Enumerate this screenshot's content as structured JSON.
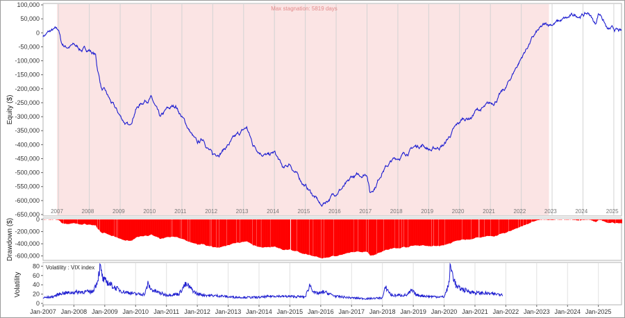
{
  "chart_data": [
    {
      "type": "line",
      "panel": "equity",
      "ylabel": "Equity ($)",
      "ylim": [
        -650000,
        100000
      ],
      "yticks": [
        100000,
        50000,
        0,
        -50000,
        -100000,
        -150000,
        -200000,
        -250000,
        -300000,
        -350000,
        -400000,
        -450000,
        -500000,
        -550000,
        -600000,
        -650000
      ],
      "ytick_labels": [
        "100,000",
        "50,000",
        "0",
        "-50,000",
        "-100,000",
        "-150,000",
        "-200,000",
        "-250,000",
        "-300,000",
        "-350,000",
        "-400,000",
        "-450,000",
        "-500,000",
        "-550,000",
        "-600,000",
        "-650,000"
      ],
      "xlim": [
        2007.0,
        2025.75
      ],
      "year_labels": [
        "2007",
        "2008",
        "2009",
        "2010",
        "2011",
        "2012",
        "2013",
        "2014",
        "2015",
        "2016",
        "2017",
        "2018",
        "2019",
        "2020",
        "2021",
        "2022",
        "2023",
        "2024",
        "2025"
      ],
      "annotation": "Max stagnation: 5819 days",
      "stagnation_period": [
        2007.45,
        2023.4
      ],
      "color": "#1f1fd0",
      "series": [
        {
          "x": [
            2007.0,
            2007.25,
            2007.5,
            2007.6,
            2007.75,
            2008.0,
            2008.25,
            2008.5,
            2008.7,
            2008.75,
            2008.9,
            2009.0,
            2009.2,
            2009.5,
            2009.8,
            2010.0,
            2010.3,
            2010.5,
            2010.8,
            2011.0,
            2011.3,
            2011.5,
            2011.7,
            2012.0,
            2012.2,
            2012.5,
            2012.8,
            2013.0,
            2013.3,
            2013.6,
            2013.8,
            2014.0,
            2014.3,
            2014.5,
            2014.8,
            2015.0,
            2015.3,
            2015.6,
            2015.9,
            2016.0,
            2016.3,
            2016.6,
            2016.9,
            2017.0,
            2017.3,
            2017.5,
            2017.6,
            2017.8,
            2018.0,
            2018.3,
            2018.6,
            2018.9,
            2019.0,
            2019.3,
            2019.6,
            2020.0,
            2020.3,
            2020.6,
            2020.9,
            2021.0,
            2021.3,
            2021.6,
            2021.9,
            2022.0,
            2022.3,
            2022.6,
            2022.8,
            2023.0,
            2023.2,
            2023.4,
            2023.7,
            2024.0,
            2024.2,
            2024.5,
            2024.7,
            2024.9,
            2025.0,
            2025.1,
            2025.3,
            2025.5,
            2025.75
          ],
          "y": [
            -10000,
            5000,
            10000,
            -40000,
            -50000,
            -45000,
            -60000,
            -60000,
            -80000,
            -120000,
            -200000,
            -210000,
            -250000,
            -300000,
            -340000,
            -270000,
            -240000,
            -230000,
            -310000,
            -280000,
            -260000,
            -300000,
            -340000,
            -400000,
            -380000,
            -440000,
            -420000,
            -400000,
            -370000,
            -340000,
            -400000,
            -420000,
            -440000,
            -430000,
            -490000,
            -470000,
            -520000,
            -560000,
            -600000,
            -620000,
            -590000,
            -560000,
            -540000,
            -520000,
            -510000,
            -500000,
            -570000,
            -540000,
            -490000,
            -460000,
            -440000,
            -420000,
            -410000,
            -400000,
            -420000,
            -400000,
            -350000,
            -310000,
            -300000,
            -280000,
            -270000,
            -250000,
            -210000,
            -200000,
            -130000,
            -70000,
            -30000,
            0,
            20000,
            30000,
            40000,
            50000,
            60000,
            65000,
            70000,
            30000,
            70000,
            65000,
            10000,
            10000,
            0
          ]
        }
      ]
    },
    {
      "type": "area",
      "panel": "drawdown",
      "ylabel": "Drawdown ($)",
      "ylim": [
        -650000,
        0
      ],
      "yticks": [
        0,
        -200000,
        -400000,
        -600000
      ],
      "ytick_labels": [
        "0",
        "-200,000",
        "-400,000",
        "-600,000"
      ],
      "color": "#ff0000"
    },
    {
      "type": "line",
      "panel": "volatility",
      "ylabel": "Volatility",
      "legend": "Volatility : VIX index",
      "ylim": [
        0,
        85
      ],
      "yticks": [
        0,
        20,
        40,
        60,
        80
      ],
      "ytick_labels": [
        "0",
        "20",
        "40",
        "60",
        "80"
      ],
      "xlim": [
        2007.0,
        2025.75
      ],
      "xticks": [
        2007.0,
        2008.0,
        2009.0,
        2010.0,
        2011.0,
        2012.0,
        2013.0,
        2014.0,
        2015.0,
        2016.0,
        2017.0,
        2018.0,
        2019.0,
        2020.0,
        2021.0,
        2022.0,
        2023.0,
        2024.0,
        2025.0
      ],
      "xtick_labels": [
        "Jan-2007",
        "Jan-2008",
        "Jan-2009",
        "Jan-2010",
        "Jan-2011",
        "Jan-2012",
        "Jan-2013",
        "Jan-2014",
        "Jan-2015",
        "Jan-2016",
        "Jan-2017",
        "Jan-2018",
        "Jan-2019",
        "Jan-2020",
        "Jan-2021",
        "Jan-2022",
        "Jan-2023",
        "Jan-2024",
        "Jan-2025"
      ],
      "color": "#1f1fd0",
      "series": [
        {
          "x": [
            2007.0,
            2007.3,
            2007.6,
            2007.9,
            2008.0,
            2008.3,
            2008.6,
            2008.75,
            2008.85,
            2008.95,
            2009.1,
            2009.3,
            2009.6,
            2009.9,
            2010.0,
            2010.3,
            2010.4,
            2010.5,
            2010.8,
            2011.0,
            2011.4,
            2011.6,
            2011.7,
            2011.9,
            2012.0,
            2012.4,
            2012.8,
            2013.0,
            2013.5,
            2014.0,
            2014.5,
            2014.8,
            2015.0,
            2015.5,
            2015.65,
            2015.8,
            2016.0,
            2016.1,
            2016.5,
            2017.0,
            2017.5,
            2018.0,
            2018.1,
            2018.3,
            2018.8,
            2018.95,
            2019.1,
            2019.5,
            2020.0,
            2020.15,
            2020.2,
            2020.4,
            2020.7,
            2021.0,
            2021.3,
            2021.6,
            2021.9
          ],
          "y": [
            12,
            14,
            22,
            23,
            24,
            25,
            25,
            45,
            78,
            50,
            45,
            35,
            25,
            22,
            20,
            20,
            42,
            30,
            22,
            18,
            20,
            40,
            38,
            25,
            20,
            17,
            16,
            14,
            13,
            13,
            16,
            15,
            15,
            14,
            40,
            22,
            22,
            25,
            15,
            12,
            10,
            12,
            35,
            17,
            18,
            28,
            18,
            15,
            14,
            40,
            80,
            35,
            28,
            23,
            22,
            20,
            20
          ]
        }
      ]
    }
  ]
}
